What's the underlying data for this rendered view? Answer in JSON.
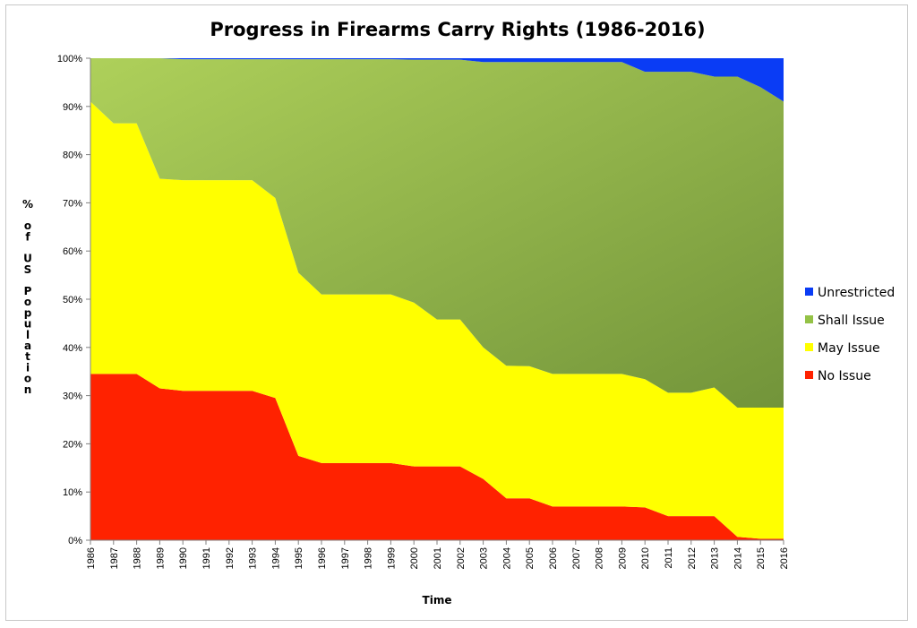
{
  "chart_data": {
    "type": "area",
    "stacked": true,
    "title": "Progress in Firearms Carry Rights (1986-2016)",
    "xlabel": "Time",
    "ylabel": "% of US Population",
    "ylim": [
      0,
      100
    ],
    "yticks": [
      "0%",
      "10%",
      "20%",
      "30%",
      "40%",
      "50%",
      "60%",
      "70%",
      "80%",
      "90%",
      "100%"
    ],
    "categories": [
      "1986",
      "1987",
      "1988",
      "1989",
      "1990",
      "1991",
      "1992",
      "1993",
      "1994",
      "1995",
      "1996",
      "1997",
      "1998",
      "1999",
      "2000",
      "2001",
      "2002",
      "2003",
      "2004",
      "2005",
      "2006",
      "2007",
      "2008",
      "2009",
      "2010",
      "2011",
      "2012",
      "2013",
      "2014",
      "2015",
      "2016"
    ],
    "series": [
      {
        "name": "No Issue",
        "color": "#ff2200",
        "values": [
          34.5,
          34.5,
          34.5,
          31.5,
          31,
          31,
          31,
          31,
          29.5,
          17.5,
          16,
          16,
          16,
          16,
          15.3,
          15.3,
          15.3,
          12.7,
          8.7,
          8.7,
          7,
          7,
          7,
          7,
          6.8,
          5,
          5,
          5,
          0.7,
          0.3,
          0.3
        ]
      },
      {
        "name": "May Issue",
        "color": "#ffff00",
        "values": [
          56.5,
          52,
          52,
          43.5,
          43.7,
          43.7,
          43.7,
          43.7,
          41.5,
          38,
          35,
          35,
          35,
          35,
          34,
          30.5,
          30.5,
          27.3,
          27.5,
          27.4,
          27.5,
          27.5,
          27.5,
          27.5,
          26.6,
          25.6,
          25.6,
          26.7,
          26.8,
          27.2,
          27.2
        ]
      },
      {
        "name": "Shall Issue",
        "color": "#94c246",
        "values": [
          9,
          13.5,
          13.5,
          25,
          25.1,
          25.1,
          25.1,
          25.1,
          28.8,
          44.3,
          48.8,
          48.8,
          48.8,
          48.8,
          50.4,
          53.9,
          53.9,
          59.2,
          63,
          63.1,
          64.7,
          64.7,
          64.7,
          64.7,
          63.8,
          66.6,
          66.6,
          64.5,
          68.7,
          66.5,
          63.5
        ]
      },
      {
        "name": "Unrestricted",
        "color": "#0a3cf5",
        "values": [
          0,
          0,
          0,
          0,
          0.2,
          0.2,
          0.2,
          0.2,
          0.2,
          0.2,
          0.2,
          0.2,
          0.2,
          0.2,
          0.3,
          0.3,
          0.3,
          0.8,
          0.8,
          0.8,
          0.8,
          0.8,
          0.8,
          0.8,
          2.8,
          2.8,
          2.8,
          3.8,
          3.8,
          6,
          9
        ]
      }
    ],
    "legend_order": [
      "Unrestricted",
      "Shall Issue",
      "May Issue",
      "No Issue"
    ],
    "legend_position": "right"
  }
}
